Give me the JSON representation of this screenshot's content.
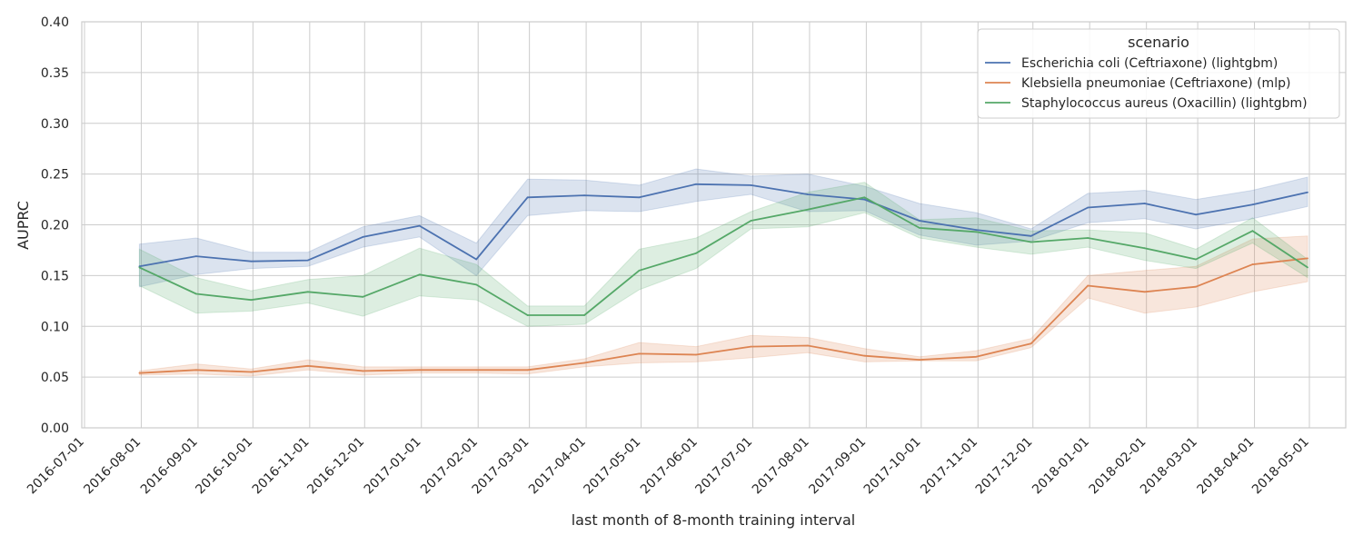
{
  "chart_data": {
    "type": "line",
    "xlabel": "last month of 8-month training interval",
    "ylabel": "AUPRC",
    "ylim": [
      0.0,
      0.4
    ],
    "yticks": [
      "0.00",
      "0.05",
      "0.10",
      "0.15",
      "0.20",
      "0.25",
      "0.30",
      "0.35",
      "0.40"
    ],
    "x_range": [
      "2016-07-01",
      "2018-05-01"
    ],
    "xticks": [
      "2016-07-01",
      "2016-08-01",
      "2016-09-01",
      "2016-10-01",
      "2016-11-01",
      "2016-12-01",
      "2017-01-01",
      "2017-02-01",
      "2017-03-01",
      "2017-04-01",
      "2017-05-01",
      "2017-06-01",
      "2017-07-01",
      "2017-08-01",
      "2017-09-01",
      "2017-10-01",
      "2017-11-01",
      "2017-12-01",
      "2018-01-01",
      "2018-02-01",
      "2018-03-01",
      "2018-04-01",
      "2018-05-01"
    ],
    "x": [
      "2016-07-31",
      "2016-08-31",
      "2016-09-30",
      "2016-10-31",
      "2016-11-30",
      "2016-12-31",
      "2017-01-31",
      "2017-02-28",
      "2017-03-31",
      "2017-04-30",
      "2017-05-31",
      "2017-06-30",
      "2017-07-31",
      "2017-08-31",
      "2017-09-30",
      "2017-10-31",
      "2017-11-30",
      "2017-12-31",
      "2018-01-31",
      "2018-02-28",
      "2018-03-31",
      "2018-04-30"
    ],
    "grid": true,
    "legend": {
      "title": "scenario",
      "placement": "top-right"
    },
    "series": [
      {
        "name": "Escherichia coli (Ceftriaxone) (lightgbm)",
        "color": "#4c72b0",
        "values": [
          0.159,
          0.169,
          0.164,
          0.165,
          0.188,
          0.199,
          0.166,
          0.227,
          0.229,
          0.227,
          0.24,
          0.239,
          0.23,
          0.225,
          0.204,
          0.195,
          0.189,
          0.217,
          0.221,
          0.21,
          0.22,
          0.232
        ],
        "lower": [
          0.139,
          0.151,
          0.157,
          0.159,
          0.178,
          0.188,
          0.15,
          0.209,
          0.214,
          0.213,
          0.223,
          0.23,
          0.213,
          0.214,
          0.19,
          0.18,
          0.184,
          0.202,
          0.206,
          0.196,
          0.206,
          0.218
        ],
        "upper": [
          0.181,
          0.187,
          0.173,
          0.173,
          0.198,
          0.209,
          0.182,
          0.245,
          0.244,
          0.239,
          0.255,
          0.248,
          0.25,
          0.238,
          0.221,
          0.212,
          0.196,
          0.231,
          0.234,
          0.225,
          0.234,
          0.247
        ]
      },
      {
        "name": "Klebsiella pneumoniae (Ceftriaxone) (mlp)",
        "color": "#dd8452",
        "values": [
          0.054,
          0.057,
          0.055,
          0.061,
          0.056,
          0.057,
          0.057,
          0.057,
          0.064,
          0.073,
          0.072,
          0.08,
          0.081,
          0.071,
          0.067,
          0.07,
          0.083,
          0.14,
          0.134,
          0.139,
          0.161,
          0.167
        ],
        "lower": [
          0.052,
          0.053,
          0.051,
          0.057,
          0.052,
          0.054,
          0.054,
          0.053,
          0.06,
          0.064,
          0.065,
          0.069,
          0.074,
          0.065,
          0.066,
          0.066,
          0.079,
          0.128,
          0.113,
          0.119,
          0.134,
          0.144
        ],
        "upper": [
          0.056,
          0.063,
          0.058,
          0.067,
          0.06,
          0.06,
          0.06,
          0.06,
          0.068,
          0.084,
          0.08,
          0.091,
          0.089,
          0.078,
          0.07,
          0.076,
          0.088,
          0.15,
          0.155,
          0.159,
          0.186,
          0.189
        ]
      },
      {
        "name": "Staphylococcus aureus (Oxacillin) (lightgbm)",
        "color": "#55a868",
        "values": [
          0.158,
          0.132,
          0.126,
          0.134,
          0.129,
          0.151,
          0.141,
          0.111,
          0.111,
          0.155,
          0.172,
          0.204,
          0.215,
          0.227,
          0.197,
          0.193,
          0.183,
          0.187,
          0.177,
          0.166,
          0.194,
          0.158
        ],
        "lower": [
          0.14,
          0.113,
          0.115,
          0.123,
          0.11,
          0.13,
          0.126,
          0.1,
          0.102,
          0.136,
          0.157,
          0.196,
          0.198,
          0.212,
          0.187,
          0.178,
          0.171,
          0.178,
          0.165,
          0.157,
          0.182,
          0.148
        ],
        "upper": [
          0.176,
          0.148,
          0.135,
          0.146,
          0.15,
          0.177,
          0.161,
          0.12,
          0.12,
          0.176,
          0.187,
          0.213,
          0.232,
          0.242,
          0.205,
          0.207,
          0.194,
          0.195,
          0.192,
          0.176,
          0.207,
          0.166
        ]
      }
    ]
  }
}
